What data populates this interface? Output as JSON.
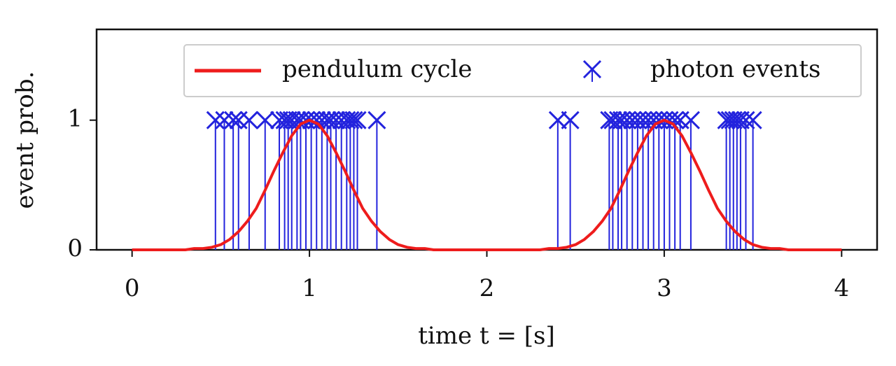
{
  "chart_data": {
    "type": "line-stem",
    "x_label": "time t = [s]",
    "y_label": "event prob.",
    "xlim": [
      -0.2,
      4.2
    ],
    "ylim": [
      0,
      1.7
    ],
    "xticks": [
      0,
      1,
      2,
      3,
      4
    ],
    "yticks": [
      0,
      1
    ],
    "legend": "upper right",
    "series": [
      {
        "name": "pendulum cycle",
        "type": "line",
        "color": "#ee1c1c",
        "x": [
          0,
          0.05,
          0.1,
          0.15,
          0.2,
          0.25,
          0.3,
          0.35,
          0.4,
          0.45,
          0.5,
          0.55,
          0.6,
          0.65,
          0.7,
          0.75,
          0.8,
          0.85,
          0.9,
          0.95,
          1,
          1.05,
          1.1,
          1.15,
          1.2,
          1.25,
          1.3,
          1.35,
          1.4,
          1.45,
          1.5,
          1.55,
          1.6,
          1.65,
          1.7,
          1.75,
          1.8,
          1.85,
          1.9,
          1.95,
          2,
          2.05,
          2.1,
          2.15,
          2.2,
          2.25,
          2.3,
          2.35,
          2.4,
          2.45,
          2.5,
          2.55,
          2.6,
          2.65,
          2.7,
          2.75,
          2.8,
          2.85,
          2.9,
          2.95,
          3,
          3.05,
          3.1,
          3.15,
          3.2,
          3.25,
          3.3,
          3.35,
          3.4,
          3.45,
          3.5,
          3.55,
          3.6,
          3.65,
          3.7,
          3.75,
          3.8,
          3.85,
          3.9,
          3.95,
          4
        ],
        "values": [
          0,
          0,
          0,
          0,
          0,
          0,
          0,
          0.01,
          0.01,
          0.02,
          0.04,
          0.08,
          0.14,
          0.22,
          0.32,
          0.46,
          0.61,
          0.75,
          0.88,
          0.97,
          1,
          0.97,
          0.88,
          0.75,
          0.61,
          0.46,
          0.32,
          0.22,
          0.14,
          0.08,
          0.04,
          0.02,
          0.01,
          0.01,
          0,
          0,
          0,
          0,
          0,
          0,
          0,
          0,
          0,
          0,
          0,
          0,
          0,
          0.01,
          0.01,
          0.02,
          0.04,
          0.08,
          0.14,
          0.22,
          0.32,
          0.46,
          0.61,
          0.75,
          0.88,
          0.97,
          1,
          0.97,
          0.88,
          0.75,
          0.61,
          0.46,
          0.32,
          0.22,
          0.14,
          0.08,
          0.04,
          0.02,
          0.01,
          0.01,
          0,
          0,
          0,
          0,
          0,
          0,
          0
        ]
      },
      {
        "name": "photon events",
        "type": "stem",
        "color": "#2323dd",
        "x": [
          0.47,
          0.52,
          0.57,
          0.6,
          0.66,
          0.75,
          0.83,
          0.86,
          0.88,
          0.9,
          0.93,
          0.95,
          0.98,
          1.01,
          1.04,
          1.07,
          1.1,
          1.12,
          1.15,
          1.18,
          1.21,
          1.23,
          1.25,
          1.27,
          1.38,
          2.4,
          2.47,
          2.69,
          2.71,
          2.74,
          2.76,
          2.79,
          2.82,
          2.85,
          2.88,
          2.91,
          2.94,
          2.97,
          3,
          3.03,
          3.06,
          3.09,
          3.15,
          3.35,
          3.37,
          3.39,
          3.41,
          3.43,
          3.46,
          3.5
        ],
        "values": [
          1,
          1,
          1,
          1,
          1,
          1,
          1,
          1,
          1,
          1,
          1,
          1,
          1,
          1,
          1,
          1,
          1,
          1,
          1,
          1,
          1,
          1,
          1,
          1,
          1,
          1,
          1,
          1,
          1,
          1,
          1,
          1,
          1,
          1,
          1,
          1,
          1,
          1,
          1,
          1,
          1,
          1,
          1,
          1,
          1,
          1,
          1,
          1,
          1,
          1
        ]
      }
    ]
  }
}
